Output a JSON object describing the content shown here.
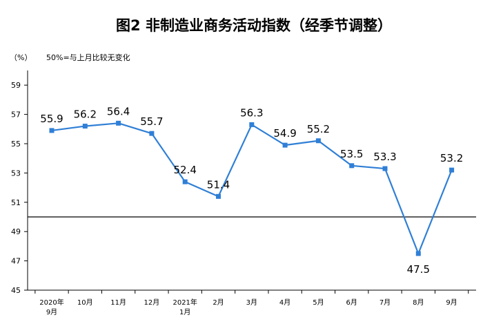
{
  "chart_data": {
    "type": "line",
    "title": "图2  非制造业商务活动指数（经季节调整）",
    "unit_label": "（%）",
    "reference_label": "50%=与上月比较无变化",
    "reference_value": 50,
    "categories": [
      [
        "2020年",
        "9月"
      ],
      [
        "10月"
      ],
      [
        "11月"
      ],
      [
        "12月"
      ],
      [
        "2021年",
        "1月"
      ],
      [
        "2月"
      ],
      [
        "3月"
      ],
      [
        "4月"
      ],
      [
        "5月"
      ],
      [
        "6月"
      ],
      [
        "7月"
      ],
      [
        "8月"
      ],
      [
        "9月"
      ]
    ],
    "series": [
      {
        "values": [
          55.9,
          56.2,
          56.4,
          55.7,
          52.4,
          51.4,
          56.3,
          54.9,
          55.2,
          53.5,
          53.3,
          47.5,
          53.2
        ],
        "labels": [
          "55.9",
          "56.2",
          "56.4",
          "55.7",
          "52.4",
          "51.4",
          "56.3",
          "54.9",
          "55.2",
          "53.5",
          "53.3",
          "47.5",
          "53.2"
        ]
      }
    ],
    "yticks": [
      "59",
      "57",
      "55",
      "53",
      "51",
      "49",
      "47",
      "45"
    ],
    "ylim": [
      45,
      60
    ],
    "grid": false,
    "colors": {
      "line": "#2f7fd6",
      "marker": "#2f7fd6",
      "reference_line": "#000000",
      "axis": "#000000",
      "text": "#000000"
    }
  }
}
